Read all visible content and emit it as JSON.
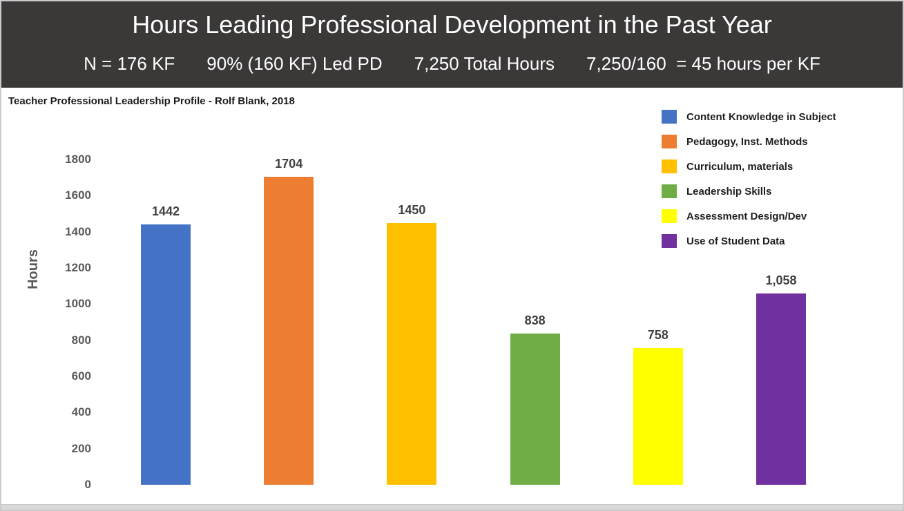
{
  "header": {
    "title": "Hours Leading Professional Development in the Past Year",
    "stats": [
      "N = 176 KF",
      "90% (160 KF) Led PD",
      "7,250 Total Hours",
      "7,250/160  = 45 hours per KF"
    ]
  },
  "annotation": "Teacher Professional Leadership Profile - Rolf Blank, 2018",
  "chart_data": {
    "type": "bar",
    "title": "Teacher Professional Leadership Profile - Rolf Blank, 2018",
    "xlabel": "",
    "ylabel": "Hours",
    "ylim": [
      0,
      1800
    ],
    "ytick_step": 200,
    "grid": false,
    "legend_position": "top-right",
    "categories": [
      "Content Knowledge in Subject",
      "Pedagogy, Inst. Methods",
      "Curriculum, materials",
      "Leadership Skills",
      "Assessment Design/Dev",
      "Use of Student Data"
    ],
    "values": [
      1442,
      1704,
      1450,
      838,
      758,
      1058
    ],
    "value_labels": [
      "1442",
      "1704",
      "1450",
      "838",
      "758",
      "1,058"
    ],
    "colors": [
      "#4472C4",
      "#ED7D31",
      "#FFC000",
      "#70AD47",
      "#FFFF00",
      "#7030A0"
    ]
  },
  "colors": {
    "header_bg": "#3B3838",
    "header_text": "#FFFFFF",
    "axis_text": "#595959",
    "value_text": "#404040",
    "legend_text": "#1F1F1F",
    "slide_border": "#CBCBCB",
    "bottom_strip": "#D9D9D9"
  }
}
